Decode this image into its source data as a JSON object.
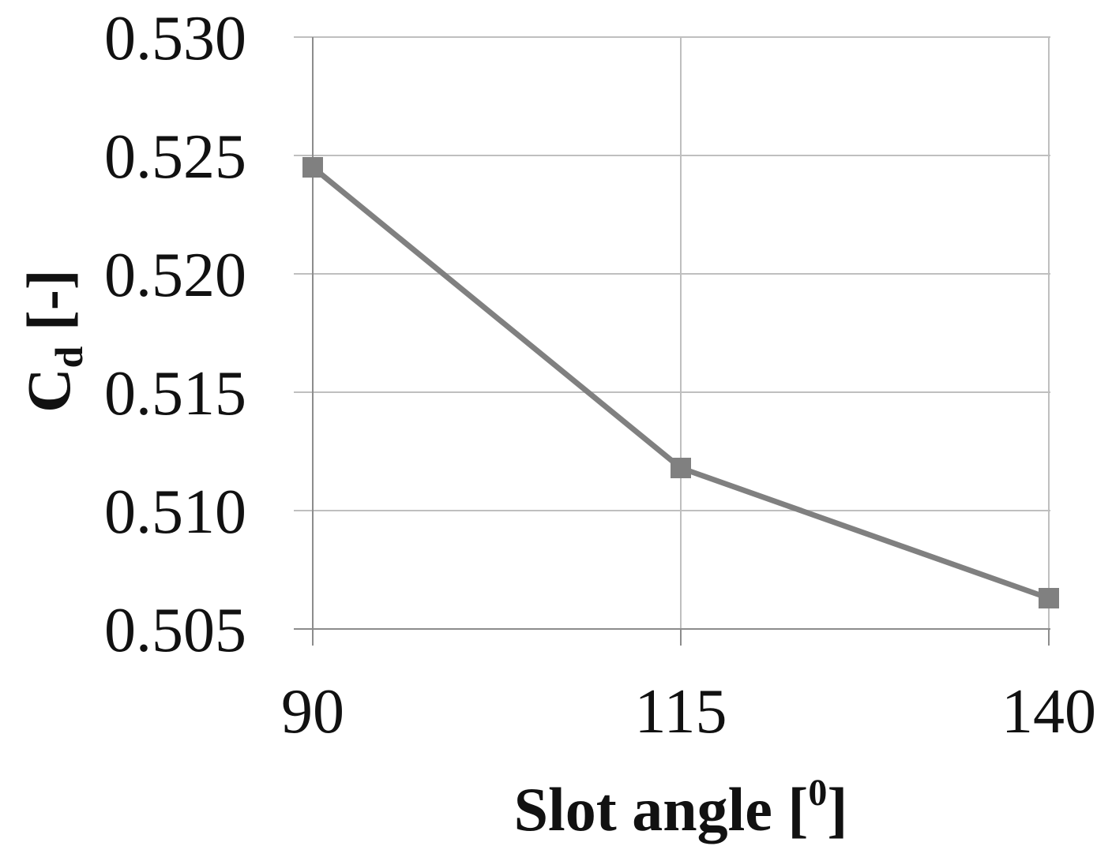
{
  "chart_data": {
    "type": "line",
    "title": "",
    "xlabel": "Slot angle [0]",
    "xlabel_parts": {
      "main": "Slot angle [",
      "sup": "0",
      "close": "]"
    },
    "ylabel": "Cd [-]",
    "ylabel_parts": {
      "main": "C",
      "sub": "d",
      "rest": " [-]"
    },
    "categories": [
      "90",
      "115",
      "140"
    ],
    "x": [
      90,
      115,
      140
    ],
    "series": [
      {
        "values": [
          0.5245,
          0.5118,
          0.5063
        ],
        "color": "#808080",
        "marker": "square"
      }
    ],
    "ylim": [
      0.505,
      0.53
    ],
    "yticks": [
      "0.505",
      "0.510",
      "0.515",
      "0.520",
      "0.525",
      "0.530"
    ],
    "grid": true,
    "gridline_color": "#bfbfbf"
  }
}
